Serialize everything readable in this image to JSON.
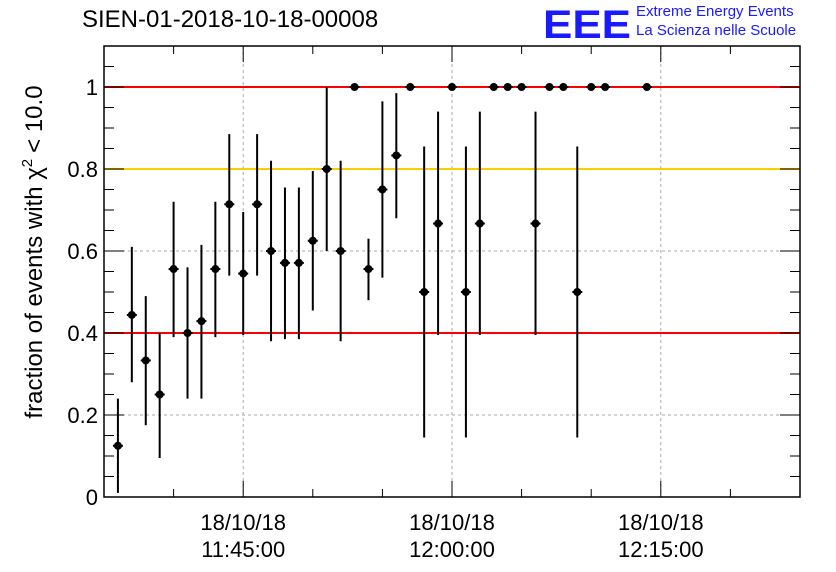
{
  "title": "SIEN-01-2018-10-18-00008",
  "logo": {
    "mark": "EEE",
    "line1": "Extreme Energy Events",
    "line2": "La Scienza nelle Scuole",
    "color": "#1a1aff"
  },
  "chart_data": {
    "type": "scatter",
    "ylabel_text": "fraction of events with χ",
    "ylabel_sup": "2",
    "ylabel_tail": "< 10.0",
    "ylim": [
      0,
      1.1
    ],
    "yticks": [
      "0",
      "0.2",
      "0.4",
      "0.6",
      "0.8",
      "1"
    ],
    "ytick_values": [
      0,
      0.2,
      0.4,
      0.6,
      0.8,
      1.0
    ],
    "xlim": [
      "2018-10-18 11:35:00",
      "2018-10-18 12:25:00"
    ],
    "xticks": [
      {
        "date": "18/10/18",
        "time": "11:45:00"
      },
      {
        "date": "18/10/18",
        "time": "12:00:00"
      },
      {
        "date": "18/10/18",
        "time": "12:15:00"
      }
    ],
    "grid": true,
    "reference_lines": [
      {
        "y": 1.0,
        "color": "#ff0000"
      },
      {
        "y": 0.8,
        "color": "#ffcc00"
      },
      {
        "y": 0.4,
        "color": "#ff0000"
      }
    ],
    "series": [
      {
        "points": [
          {
            "x": "11:36:00",
            "y": 0.125,
            "lo": 0.01,
            "hi": 0.24
          },
          {
            "x": "11:37:00",
            "y": 0.444,
            "lo": 0.28,
            "hi": 0.61
          },
          {
            "x": "11:38:00",
            "y": 0.333,
            "lo": 0.175,
            "hi": 0.49
          },
          {
            "x": "11:39:00",
            "y": 0.25,
            "lo": 0.095,
            "hi": 0.4
          },
          {
            "x": "11:40:00",
            "y": 0.556,
            "lo": 0.39,
            "hi": 0.72
          },
          {
            "x": "11:41:00",
            "y": 0.4,
            "lo": 0.24,
            "hi": 0.56
          },
          {
            "x": "11:42:00",
            "y": 0.429,
            "lo": 0.24,
            "hi": 0.615
          },
          {
            "x": "11:43:00",
            "y": 0.556,
            "lo": 0.39,
            "hi": 0.72
          },
          {
            "x": "11:44:00",
            "y": 0.714,
            "lo": 0.54,
            "hi": 0.885
          },
          {
            "x": "11:45:00",
            "y": 0.545,
            "lo": 0.395,
            "hi": 0.695
          },
          {
            "x": "11:46:00",
            "y": 0.714,
            "lo": 0.54,
            "hi": 0.885
          },
          {
            "x": "11:47:00",
            "y": 0.6,
            "lo": 0.38,
            "hi": 0.82
          },
          {
            "x": "11:48:00",
            "y": 0.571,
            "lo": 0.385,
            "hi": 0.755
          },
          {
            "x": "11:49:00",
            "y": 0.571,
            "lo": 0.385,
            "hi": 0.755
          },
          {
            "x": "11:50:00",
            "y": 0.625,
            "lo": 0.455,
            "hi": 0.795
          },
          {
            "x": "11:51:00",
            "y": 0.8,
            "lo": 0.6,
            "hi": 1.0
          },
          {
            "x": "11:52:00",
            "y": 0.6,
            "lo": 0.38,
            "hi": 0.82
          },
          {
            "x": "11:53:00",
            "y": 1.0,
            "lo": 1.0,
            "hi": 1.0
          },
          {
            "x": "11:54:00",
            "y": 0.556,
            "lo": 0.48,
            "hi": 0.63
          },
          {
            "x": "11:55:00",
            "y": 0.75,
            "lo": 0.535,
            "hi": 0.965
          },
          {
            "x": "11:56:00",
            "y": 0.833,
            "lo": 0.68,
            "hi": 0.985
          },
          {
            "x": "11:57:00",
            "y": 1.0,
            "lo": 1.0,
            "hi": 1.0
          },
          {
            "x": "11:58:00",
            "y": 0.5,
            "lo": 0.145,
            "hi": 0.855
          },
          {
            "x": "11:59:00",
            "y": 0.667,
            "lo": 0.395,
            "hi": 0.94
          },
          {
            "x": "12:00:00",
            "y": 1.0,
            "lo": 1.0,
            "hi": 1.0
          },
          {
            "x": "12:01:00",
            "y": 0.5,
            "lo": 0.145,
            "hi": 0.855
          },
          {
            "x": "12:02:00",
            "y": 0.667,
            "lo": 0.395,
            "hi": 0.94
          },
          {
            "x": "12:03:00",
            "y": 1.0,
            "lo": 1.0,
            "hi": 1.0
          },
          {
            "x": "12:04:00",
            "y": 1.0,
            "lo": 1.0,
            "hi": 1.0
          },
          {
            "x": "12:05:00",
            "y": 1.0,
            "lo": 1.0,
            "hi": 1.0
          },
          {
            "x": "12:06:00",
            "y": 0.667,
            "lo": 0.395,
            "hi": 0.94
          },
          {
            "x": "12:07:00",
            "y": 1.0,
            "lo": 1.0,
            "hi": 1.0
          },
          {
            "x": "12:08:00",
            "y": 1.0,
            "lo": 1.0,
            "hi": 1.0
          },
          {
            "x": "12:09:00",
            "y": 0.5,
            "lo": 0.145,
            "hi": 0.855
          },
          {
            "x": "12:10:00",
            "y": 1.0,
            "lo": 1.0,
            "hi": 1.0
          },
          {
            "x": "12:11:00",
            "y": 1.0,
            "lo": 1.0,
            "hi": 1.0
          },
          {
            "x": "12:14:00",
            "y": 1.0,
            "lo": 1.0,
            "hi": 1.0
          }
        ]
      }
    ]
  }
}
